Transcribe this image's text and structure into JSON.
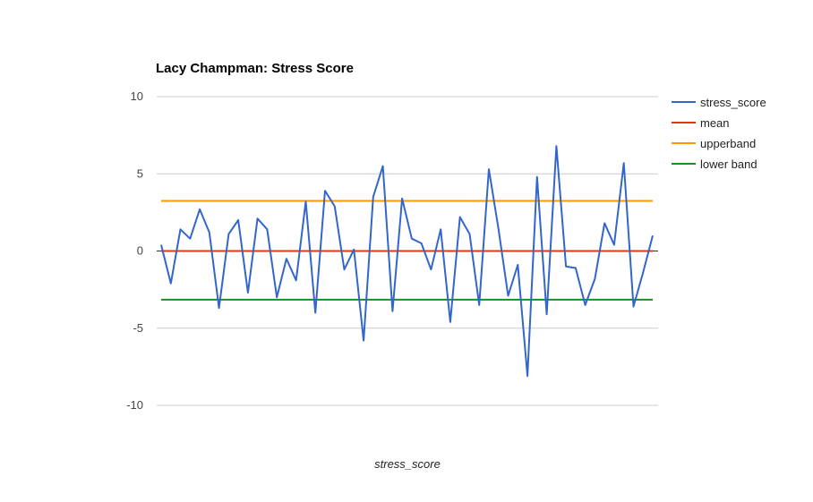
{
  "chart_data": {
    "type": "line",
    "title": "Lacy Champman: Stress Score",
    "xlabel": "stress_score",
    "ylabel": "",
    "ylim": [
      -10,
      10
    ],
    "yticks": [
      {
        "value": 10,
        "label": "10"
      },
      {
        "value": 5,
        "label": "5"
      },
      {
        "value": 0,
        "label": "0"
      },
      {
        "value": -5,
        "label": "-5"
      },
      {
        "value": -10,
        "label": "-10"
      }
    ],
    "grid": true,
    "legend_position": "right",
    "series": [
      {
        "name": "stress_score",
        "color": "#3366cc",
        "values": [
          0.4,
          -2.1,
          1.4,
          0.8,
          2.7,
          1.2,
          -3.7,
          1.1,
          2.0,
          -2.7,
          2.1,
          1.4,
          -3.0,
          -0.5,
          -1.9,
          3.2,
          -4.0,
          3.9,
          2.9,
          -1.2,
          0.1,
          -5.8,
          3.5,
          5.5,
          -3.9,
          3.4,
          0.8,
          0.5,
          -1.2,
          1.4,
          -4.6,
          2.2,
          1.1,
          -3.5,
          5.3,
          1.4,
          -2.9,
          -0.9,
          -8.1,
          4.8,
          -4.1,
          6.8,
          -1.0,
          -1.1,
          -3.5,
          -1.8,
          1.8,
          0.4,
          5.7,
          -3.6,
          -1.4,
          1.0
        ]
      },
      {
        "name": "mean",
        "color": "#dc3912",
        "constant": 0.0
      },
      {
        "name": "upperband",
        "color": "#ff9900",
        "constant": 3.25
      },
      {
        "name": "lower band",
        "color": "#109618",
        "constant": -3.15
      }
    ]
  }
}
